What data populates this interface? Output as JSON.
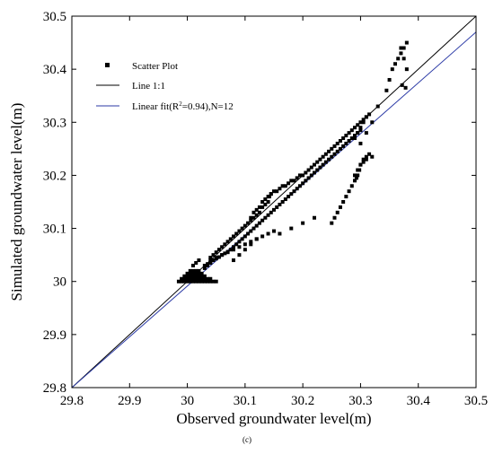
{
  "chart_data": {
    "type": "scatter",
    "xlabel": "Observed groundwater level(m)",
    "ylabel": "Simulated groundwater level(m)",
    "caption": "(c)",
    "xlim": [
      29.8,
      30.5
    ],
    "ylim": [
      29.8,
      30.5
    ],
    "xticks": [
      "29.8",
      "29.9",
      "30",
      "30.1",
      "30.2",
      "30.3",
      "30.4",
      "30.5"
    ],
    "yticks": [
      "29.8",
      "29.9",
      "30",
      "30.1",
      "30.2",
      "30.3",
      "30.4",
      "30.5"
    ],
    "grid": false,
    "legend_position": "top-left",
    "colors": {
      "scatter": "#000000",
      "line11": "#000000",
      "fit": "#2b3aa6"
    },
    "legend": {
      "scatter": "Scatter Plot",
      "line11": "Line 1:1",
      "fit_prefix": "Linear fit(R",
      "fit_sup": "2",
      "fit_suffix": "=0.94),N=12"
    },
    "lines": [
      {
        "name": "Line 1:1",
        "x": [
          29.8,
          30.5
        ],
        "y": [
          29.8,
          30.5
        ]
      },
      {
        "name": "Linear fit",
        "x": [
          29.8,
          30.5
        ],
        "y": [
          29.8,
          30.47
        ]
      }
    ],
    "scatter": {
      "name": "Scatter Plot",
      "x": [
        29.985,
        29.99,
        29.995,
        30.0,
        30.005,
        30.01,
        30.015,
        30.02,
        30.025,
        30.03,
        30.035,
        30.04,
        30.045,
        30.05,
        29.99,
        29.995,
        30.0,
        30.005,
        30.01,
        30.015,
        30.02,
        30.025,
        30.03,
        30.035,
        30.04,
        29.995,
        30.0,
        30.005,
        30.01,
        30.015,
        30.02,
        30.025,
        30.03,
        30.0,
        30.005,
        30.01,
        30.015,
        30.02,
        30.025,
        30.005,
        30.01,
        30.015,
        30.02,
        30.01,
        30.015,
        30.02,
        30.03,
        30.035,
        30.04,
        30.04,
        30.045,
        30.05,
        30.055,
        30.06,
        30.065,
        30.07,
        30.075,
        30.08,
        30.085,
        30.09,
        30.095,
        30.1,
        30.105,
        30.11,
        30.115,
        30.12,
        30.125,
        30.13,
        30.135,
        30.14,
        30.142,
        30.145,
        30.15,
        30.155,
        30.16,
        30.165,
        30.17,
        30.175,
        30.18,
        30.185,
        30.19,
        30.195,
        30.2,
        30.205,
        30.21,
        30.215,
        30.22,
        30.225,
        30.23,
        30.235,
        30.24,
        30.245,
        30.25,
        30.255,
        30.26,
        30.265,
        30.27,
        30.275,
        30.28,
        30.285,
        30.29,
        30.295,
        30.3,
        30.305,
        30.31,
        30.315,
        30.11,
        30.115,
        30.12,
        30.125,
        30.13,
        30.135,
        30.14,
        30.145,
        30.03,
        30.035,
        30.04,
        30.045,
        30.05,
        30.055,
        30.06,
        30.065,
        30.07,
        30.075,
        30.08,
        30.085,
        30.09,
        30.095,
        30.1,
        30.105,
        30.11,
        30.115,
        30.12,
        30.125,
        30.13,
        30.135,
        30.14,
        30.145,
        30.15,
        30.155,
        30.16,
        30.165,
        30.17,
        30.175,
        30.18,
        30.185,
        30.19,
        30.195,
        30.2,
        30.205,
        30.21,
        30.215,
        30.22,
        30.225,
        30.23,
        30.235,
        30.24,
        30.245,
        30.25,
        30.255,
        30.26,
        30.265,
        30.27,
        30.275,
        30.28,
        30.285,
        30.29,
        30.295,
        30.3,
        30.04,
        30.05,
        30.06,
        30.07,
        30.08,
        30.09,
        30.1,
        30.11,
        30.12,
        30.13,
        30.14,
        30.15,
        30.08,
        30.09,
        30.1,
        30.11,
        30.12,
        30.16,
        30.18,
        30.2,
        30.22,
        30.29,
        30.295,
        30.3,
        30.305,
        30.31,
        30.315,
        30.25,
        30.255,
        30.26,
        30.265,
        30.27,
        30.275,
        30.28,
        30.285,
        30.29,
        30.293,
        30.295,
        30.298,
        30.3,
        30.305,
        30.31,
        30.32,
        30.3,
        30.31,
        30.32,
        30.33,
        30.29,
        30.295,
        30.3,
        30.305,
        30.31,
        30.345,
        30.35,
        30.355,
        30.36,
        30.365,
        30.37,
        30.375,
        30.38,
        30.37,
        30.375,
        30.38,
        30.372,
        30.378
      ],
      "y": [
        30.0,
        30.0,
        30.0,
        30.0,
        30.0,
        30.0,
        30.0,
        30.0,
        30.0,
        30.0,
        30.0,
        30.0,
        30.0,
        30.0,
        30.005,
        30.005,
        30.005,
        30.005,
        30.005,
        30.005,
        30.005,
        30.005,
        30.005,
        30.005,
        30.005,
        30.01,
        30.01,
        30.01,
        30.01,
        30.01,
        30.01,
        30.01,
        30.01,
        30.015,
        30.015,
        30.015,
        30.015,
        30.015,
        30.015,
        30.02,
        30.02,
        30.02,
        30.02,
        30.03,
        30.035,
        30.04,
        30.025,
        30.03,
        30.035,
        30.045,
        30.05,
        30.055,
        30.06,
        30.065,
        30.07,
        30.075,
        30.08,
        30.085,
        30.09,
        30.095,
        30.1,
        30.105,
        30.11,
        30.115,
        30.12,
        30.125,
        30.13,
        30.14,
        30.145,
        30.15,
        30.16,
        30.165,
        30.17,
        30.17,
        30.175,
        30.18,
        30.18,
        30.185,
        30.19,
        30.19,
        30.195,
        30.2,
        30.2,
        30.205,
        30.21,
        30.215,
        30.22,
        30.225,
        30.23,
        30.235,
        30.24,
        30.245,
        30.25,
        30.255,
        30.26,
        30.265,
        30.27,
        30.275,
        30.28,
        30.285,
        30.29,
        30.295,
        30.3,
        30.305,
        30.31,
        30.315,
        30.12,
        30.13,
        30.135,
        30.14,
        30.15,
        30.155,
        30.16,
        30.165,
        30.03,
        30.033,
        30.036,
        30.04,
        30.043,
        30.046,
        30.05,
        30.053,
        30.056,
        30.06,
        30.065,
        30.07,
        30.075,
        30.08,
        30.085,
        30.09,
        30.095,
        30.1,
        30.105,
        30.11,
        30.115,
        30.12,
        30.125,
        30.13,
        30.135,
        30.14,
        30.145,
        30.15,
        30.155,
        30.16,
        30.165,
        30.17,
        30.175,
        30.18,
        30.185,
        30.19,
        30.195,
        30.2,
        30.205,
        30.21,
        30.215,
        30.22,
        30.225,
        30.23,
        30.235,
        30.24,
        30.245,
        30.25,
        30.255,
        30.26,
        30.265,
        30.27,
        30.275,
        30.28,
        30.285,
        30.04,
        30.045,
        30.05,
        30.055,
        30.06,
        30.065,
        30.07,
        30.075,
        30.08,
        30.085,
        30.09,
        30.095,
        30.04,
        30.05,
        30.06,
        30.07,
        30.08,
        30.09,
        30.1,
        30.11,
        30.12,
        30.2,
        30.21,
        30.22,
        30.23,
        30.235,
        30.24,
        30.11,
        30.12,
        30.13,
        30.14,
        30.15,
        30.16,
        30.17,
        30.18,
        30.19,
        30.195,
        30.2,
        30.21,
        30.22,
        30.225,
        30.23,
        30.235,
        30.26,
        30.28,
        30.3,
        30.33,
        30.27,
        30.28,
        30.29,
        30.3,
        30.31,
        30.36,
        30.38,
        30.4,
        30.41,
        30.42,
        30.43,
        30.44,
        30.45,
        30.44,
        30.42,
        30.4,
        30.37,
        30.365
      ]
    }
  }
}
